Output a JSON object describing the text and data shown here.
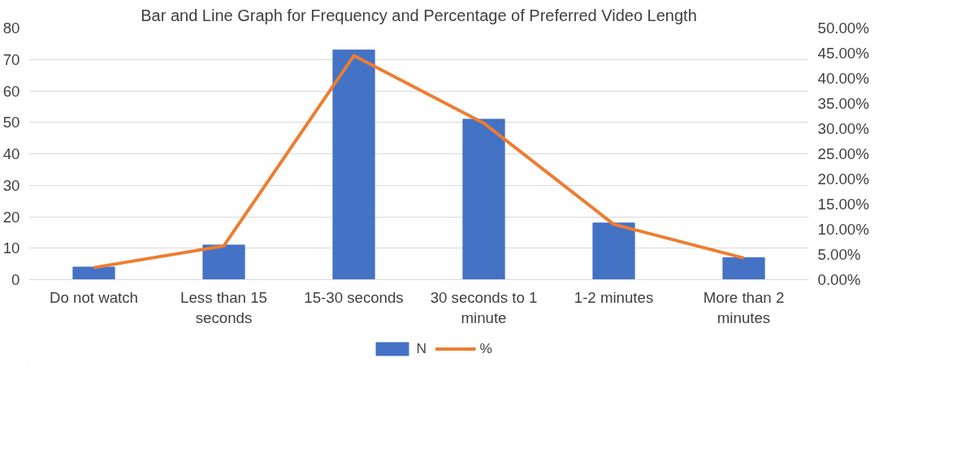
{
  "chart_data": {
    "type": "bar",
    "title": "Bar and Line Graph for Frequency and Percentage of Preferred Video Length",
    "categories": [
      "Do not watch",
      "Less than 15 seconds",
      "15-30 seconds",
      "30 seconds to 1 minute",
      "1-2 minutes",
      "More than 2 minutes"
    ],
    "series": [
      {
        "name": "N",
        "type": "bar",
        "color": "#4472c4",
        "values": [
          4,
          11,
          73,
          51,
          18,
          7
        ]
      },
      {
        "name": "%",
        "type": "line",
        "axis": "y2",
        "color": "#ed7d31",
        "values": [
          2.4,
          6.7,
          44.5,
          31.1,
          11.0,
          4.3
        ]
      }
    ],
    "ylim": [
      0,
      80
    ],
    "yticks": [
      0,
      10,
      20,
      30,
      40,
      50,
      60,
      70,
      80
    ],
    "y2lim": [
      0,
      50
    ],
    "y2ticks": [
      {
        "value": 0,
        "label": "0.00%"
      },
      {
        "value": 5,
        "label": "5.00%"
      },
      {
        "value": 10,
        "label": "10.00%"
      },
      {
        "value": 15,
        "label": "15.00%"
      },
      {
        "value": 20,
        "label": "20.00%"
      },
      {
        "value": 25,
        "label": "25.00%"
      },
      {
        "value": 30,
        "label": "30.00%"
      },
      {
        "value": 35,
        "label": "35.00%"
      },
      {
        "value": 40,
        "label": "40.00%"
      },
      {
        "value": 45,
        "label": "45.00%"
      },
      {
        "value": 50,
        "label": "50.00%"
      }
    ],
    "grid": "y",
    "legend": "bottom",
    "marker": "none",
    "line_style": "solid"
  }
}
